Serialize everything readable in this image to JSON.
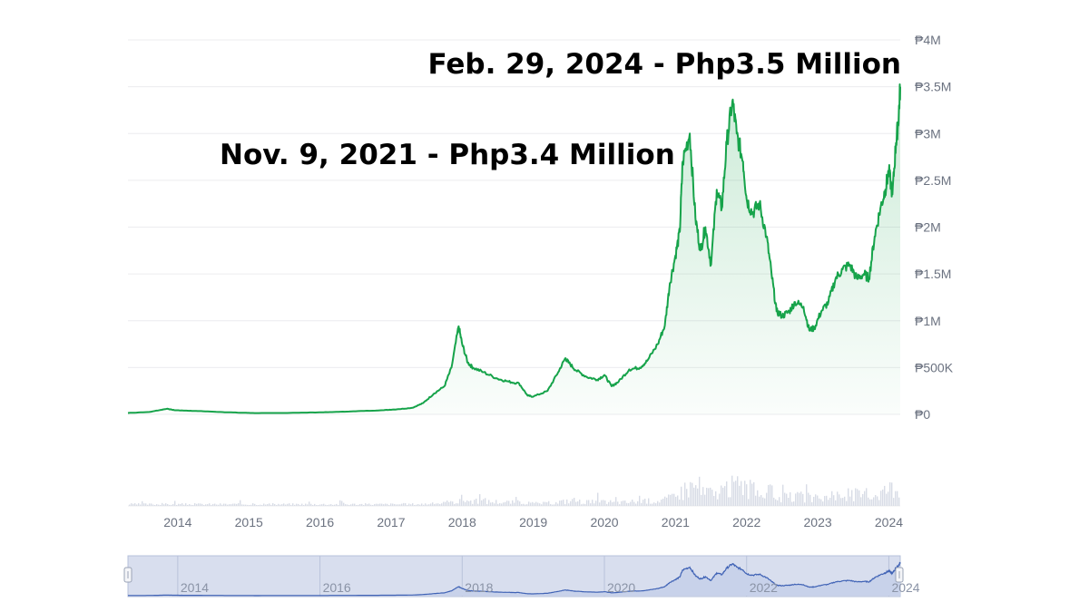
{
  "chart_data": {
    "type": "line",
    "currency_symbol": "₱",
    "ylim": [
      0,
      4000000
    ],
    "y_ticks": [
      {
        "value": 0,
        "label": "₱0"
      },
      {
        "value": 500000,
        "label": "₱500K"
      },
      {
        "value": 1000000,
        "label": "₱1M"
      },
      {
        "value": 1500000,
        "label": "₱1.5M"
      },
      {
        "value": 2000000,
        "label": "₱2M"
      },
      {
        "value": 2500000,
        "label": "₱2.5M"
      },
      {
        "value": 3000000,
        "label": "₱3M"
      },
      {
        "value": 3500000,
        "label": "₱3.5M"
      },
      {
        "value": 4000000,
        "label": "₱4M"
      }
    ],
    "x_tick_labels": [
      "2014",
      "2015",
      "2016",
      "2017",
      "2018",
      "2019",
      "2020",
      "2021",
      "2022",
      "2023",
      "2024"
    ],
    "navigator_tick_labels": [
      "2014",
      "2016",
      "2018",
      "2020",
      "2022",
      "2024"
    ],
    "grid": true,
    "annotations": [
      {
        "text": "Feb. 29, 2024 - Php3.5 Million"
      },
      {
        "text": "Nov. 9, 2021 - Php3.4 Million"
      }
    ],
    "colors": {
      "line": "#16a34a",
      "fill": "#16a34a",
      "volume": "#d8dce6",
      "navigator_fill": "#d5dcef",
      "navigator_line": "#3f62b5",
      "grid": "#ececef"
    },
    "series": [
      {
        "x": [
          2013.3,
          2013.6,
          2013.85,
          2013.95,
          2014.1,
          2014.3,
          2014.6,
          2014.9,
          2015.1,
          2015.5,
          2015.9,
          2016.2,
          2016.5,
          2016.9,
          2017.1,
          2017.3,
          2017.45,
          2017.6,
          2017.75,
          2017.85,
          2017.95,
          2018.0,
          2018.08,
          2018.15,
          2018.3,
          2018.5,
          2018.65,
          2018.8,
          2018.92,
          2019.0,
          2019.2,
          2019.35,
          2019.45,
          2019.5,
          2019.6,
          2019.75,
          2019.9,
          2020.0,
          2020.1,
          2020.2,
          2020.35,
          2020.5,
          2020.6,
          2020.75,
          2020.85,
          2020.92,
          2021.0,
          2021.06,
          2021.1,
          2021.2,
          2021.28,
          2021.35,
          2021.42,
          2021.5,
          2021.58,
          2021.65,
          2021.72,
          2021.8,
          2021.86,
          2021.95,
          2022.0,
          2022.08,
          2022.18,
          2022.28,
          2022.35,
          2022.42,
          2022.5,
          2022.6,
          2022.68,
          2022.8,
          2022.88,
          2022.95,
          2023.05,
          2023.15,
          2023.25,
          2023.35,
          2023.45,
          2023.55,
          2023.65,
          2023.72,
          2023.8,
          2023.88,
          2023.95,
          2024.0,
          2024.05,
          2024.1,
          2024.13,
          2024.16
        ],
        "y": [
          15000,
          25000,
          60000,
          45000,
          40000,
          35000,
          25000,
          17000,
          14000,
          15000,
          20000,
          25000,
          33000,
          45000,
          55000,
          70000,
          120000,
          220000,
          300000,
          500000,
          940000,
          750000,
          550000,
          500000,
          450000,
          380000,
          350000,
          330000,
          200000,
          190000,
          250000,
          450000,
          600000,
          550000,
          470000,
          400000,
          370000,
          420000,
          300000,
          350000,
          480000,
          500000,
          570000,
          750000,
          950000,
          1400000,
          1700000,
          1950000,
          2700000,
          3000000,
          2100000,
          1750000,
          2000000,
          1600000,
          2400000,
          2200000,
          2900000,
          3350000,
          3000000,
          2700000,
          2300000,
          2150000,
          2250000,
          1900000,
          1500000,
          1100000,
          1050000,
          1100000,
          1200000,
          1150000,
          900000,
          920000,
          1100000,
          1200000,
          1450000,
          1550000,
          1600000,
          1450000,
          1500000,
          1450000,
          1900000,
          2200000,
          2400000,
          2600000,
          2350000,
          2900000,
          3100000,
          3500000
        ]
      }
    ]
  }
}
